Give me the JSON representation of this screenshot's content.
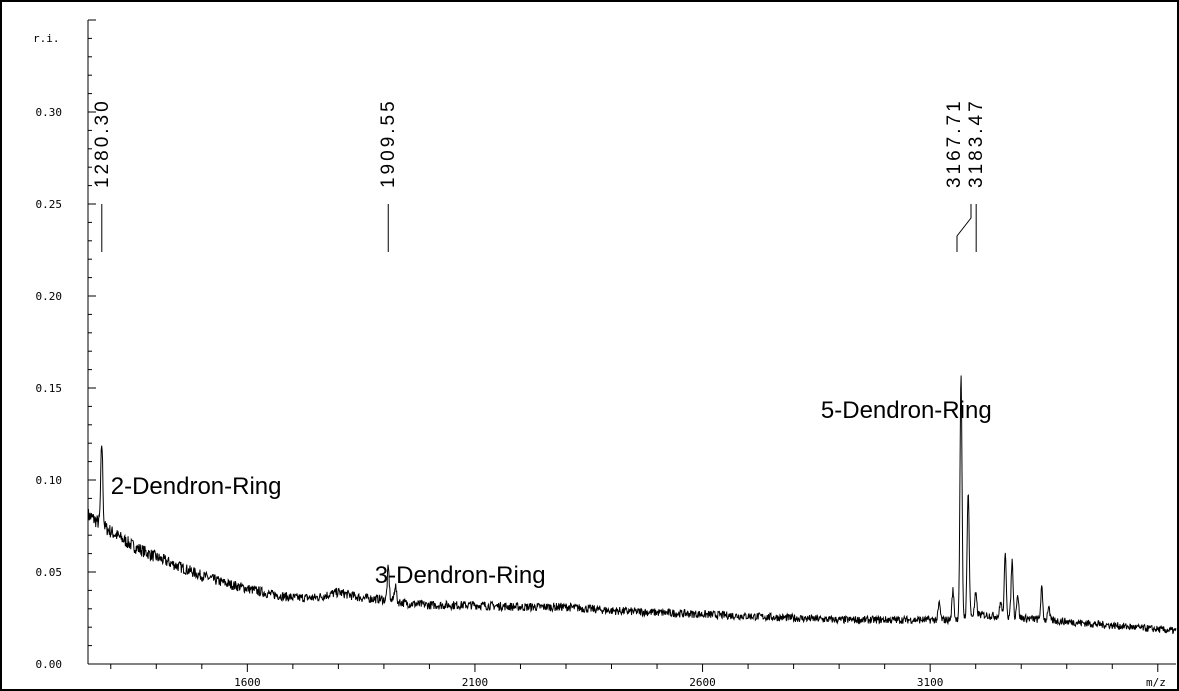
{
  "chart_data": {
    "type": "line",
    "xlabel": "m/z",
    "ylabel": "r.i.",
    "xlim": [
      1250,
      3640
    ],
    "ylim": [
      0,
      0.35
    ],
    "x_ticks": [
      {
        "value": 1600,
        "label": "1600"
      },
      {
        "value": 2100,
        "label": "2100"
      },
      {
        "value": 2600,
        "label": "2600"
      },
      {
        "value": 3100,
        "label": "3100"
      }
    ],
    "y_ticks": [
      {
        "value": 0.0,
        "label": "0.00"
      },
      {
        "value": 0.05,
        "label": "0.05"
      },
      {
        "value": 0.1,
        "label": "0.10"
      },
      {
        "value": 0.15,
        "label": "0.15"
      },
      {
        "value": 0.2,
        "label": "0.20"
      },
      {
        "value": 0.25,
        "label": "0.25"
      },
      {
        "value": 0.3,
        "label": "0.30"
      }
    ],
    "grid": false,
    "series": [
      {
        "baseline": [
          [
            1250,
            0.081
          ],
          [
            1300,
            0.072
          ],
          [
            1350,
            0.064
          ],
          [
            1400,
            0.058
          ],
          [
            1450,
            0.053
          ],
          [
            1500,
            0.048
          ],
          [
            1550,
            0.044
          ],
          [
            1600,
            0.041
          ],
          [
            1650,
            0.038
          ],
          [
            1700,
            0.036
          ],
          [
            1750,
            0.036
          ],
          [
            1800,
            0.039
          ],
          [
            1850,
            0.036
          ],
          [
            1900,
            0.035
          ],
          [
            1950,
            0.033
          ],
          [
            2000,
            0.032
          ],
          [
            2100,
            0.032
          ],
          [
            2200,
            0.031
          ],
          [
            2300,
            0.031
          ],
          [
            2400,
            0.029
          ],
          [
            2500,
            0.028
          ],
          [
            2600,
            0.027
          ],
          [
            2700,
            0.026
          ],
          [
            2800,
            0.025
          ],
          [
            2900,
            0.024
          ],
          [
            3000,
            0.024
          ],
          [
            3100,
            0.024
          ],
          [
            3150,
            0.024
          ],
          [
            3200,
            0.027
          ],
          [
            3300,
            0.025
          ],
          [
            3400,
            0.023
          ],
          [
            3500,
            0.021
          ],
          [
            3640,
            0.018
          ]
        ],
        "peaks": [
          {
            "x": 1280.3,
            "y": 0.12
          },
          {
            "x": 1292,
            "y": 0.066
          },
          {
            "x": 1330,
            "y": 0.062
          },
          {
            "x": 1360,
            "y": 0.058
          },
          {
            "x": 1909.55,
            "y": 0.052
          },
          {
            "x": 1925,
            "y": 0.043
          },
          {
            "x": 3120,
            "y": 0.033
          },
          {
            "x": 3150,
            "y": 0.04
          },
          {
            "x": 3167.71,
            "y": 0.156
          },
          {
            "x": 3183.47,
            "y": 0.095
          },
          {
            "x": 3200,
            "y": 0.038
          },
          {
            "x": 3255,
            "y": 0.034
          },
          {
            "x": 3265,
            "y": 0.059
          },
          {
            "x": 3280,
            "y": 0.056
          },
          {
            "x": 3292,
            "y": 0.038
          },
          {
            "x": 3345,
            "y": 0.041
          },
          {
            "x": 3360,
            "y": 0.031
          }
        ]
      }
    ],
    "peak_labels": [
      {
        "x": 1280.3,
        "text": "1280.30"
      },
      {
        "x": 1909.55,
        "text": "1909.55"
      },
      {
        "x": 3167.71,
        "text": "3167.71"
      },
      {
        "x": 3183.47,
        "text": "3183.47"
      }
    ],
    "annotations": [
      {
        "text": "2-Dendron-Ring",
        "x": 1300,
        "y": 0.095
      },
      {
        "text": "3-Dendron-Ring",
        "x": 1880,
        "y": 0.045
      },
      {
        "text": "5-Dendron-Ring",
        "x": 2860,
        "y": 0.14
      }
    ]
  }
}
